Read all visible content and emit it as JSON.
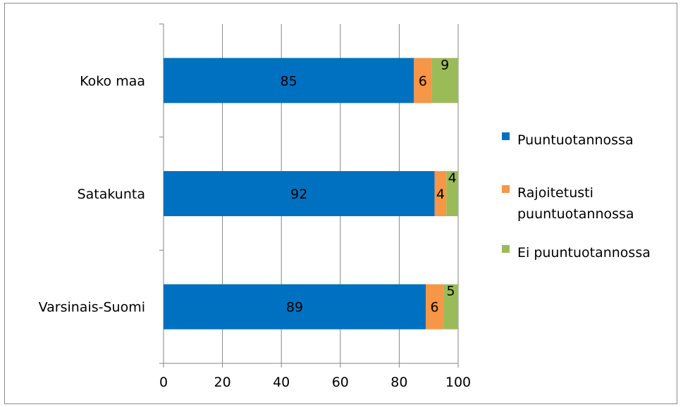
{
  "chart_data": {
    "type": "bar",
    "orientation": "horizontal",
    "stacked": true,
    "categories": [
      "Koko maa",
      "Satakunta",
      "Varsinais-Suomi"
    ],
    "series": [
      {
        "name": "Puuntuotannossa",
        "color": "#0070C0",
        "values": [
          85,
          92,
          89
        ]
      },
      {
        "name": "Rajoitetusti puuntuotannossa",
        "color": "#F79646",
        "values": [
          6,
          4,
          6
        ]
      },
      {
        "name": "Ei puuntuotannossa",
        "color": "#9BBB59",
        "values": [
          9,
          4,
          5
        ]
      }
    ],
    "xlim": [
      0,
      100
    ],
    "x_ticks": [
      "0",
      "20",
      "40",
      "60",
      "80",
      "100"
    ],
    "grid": true,
    "legend_position": "right",
    "legend_labels": [
      [
        "Puuntuotannossa"
      ],
      [
        "Rajoitetusti",
        "puuntuotannossa"
      ],
      [
        "Ei puuntuotannossa"
      ]
    ]
  }
}
